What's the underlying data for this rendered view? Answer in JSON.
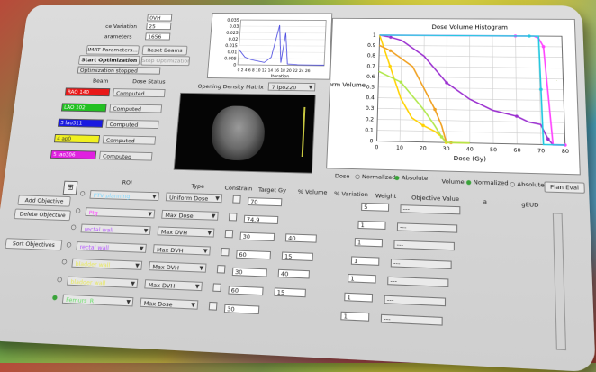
{
  "header": {
    "rows": [
      {
        "label": "ce Variation",
        "value": "25"
      },
      {
        "label": "arameters",
        "value": "1656"
      }
    ],
    "top_value": "0VH"
  },
  "buttons": {
    "imrt_params": "IMRT Parameters...",
    "reset_beams": "Reset Beams",
    "start_opt": "Start Optimization",
    "stop_opt": "Stop Optimization",
    "opt_status": "Optimization stopped",
    "add_objective": "Add Objective",
    "delete_objective": "Delete Objective",
    "sort_objectives": "Sort Objectives",
    "plan_eval": "Plan Eval"
  },
  "beams": {
    "header_beam": "Beam",
    "header_status": "Dose Status",
    "items": [
      {
        "name": "RAO 140",
        "color": "#e81818",
        "status": "Computed"
      },
      {
        "name": "LAO 102",
        "color": "#22c022",
        "status": "Computed"
      },
      {
        "name": "3 lao311",
        "color": "#1a1ae0",
        "status": "Computed"
      },
      {
        "name": "4 ap0",
        "color": "#f0f020",
        "status": "Computed"
      },
      {
        "name": "5 lao306",
        "color": "#e020e0",
        "status": "Computed"
      }
    ]
  },
  "opening_density": {
    "label": "Opening Density Matrix",
    "selected": "7 lpo220"
  },
  "dvh": {
    "title": "Dose Volume Histogram",
    "dose_label": "Dose",
    "dose_normalized": "Normalized",
    "dose_absolute": "Absolute",
    "volume_label": "Volume",
    "volume_normalized": "Normalized",
    "volume_absolute": "Absolute"
  },
  "small_chart": {
    "yticks": [
      "0.035",
      "0.03",
      "0.025",
      "0.02",
      "0.015",
      "0.01",
      "0.005",
      "0"
    ],
    "xticks": "0 2 4 6 8 10 12 14 16 18 20 22 24 26",
    "xlabel": "Iteration"
  },
  "objectives_table": {
    "headers": {
      "roi": "ROI",
      "type": "Type",
      "constrain": "Constrain",
      "target_gy": "Target Gy",
      "pct_volume": "% Volume",
      "pct_variation": "% Variation",
      "weight": "Weight",
      "objective_value": "Objective Value",
      "a": "a",
      "geud": "gEUD"
    },
    "rows": [
      {
        "roi": "PTV planning",
        "roi_color": "#7fd8ff",
        "type": "Uniform Dose",
        "target": "70",
        "volume": "",
        "weight": "5",
        "value": "---"
      },
      {
        "roi": "Ptg",
        "roi_color": "#ff44ff",
        "type": "Max Dose",
        "target": "74.9",
        "volume": "",
        "weight": "1",
        "value": "---"
      },
      {
        "roi": "rectal wall",
        "roi_color": "#b455ff",
        "type": "Max DVH",
        "target": "30",
        "volume": "40",
        "weight": "1",
        "value": "---"
      },
      {
        "roi": "rectal wall",
        "roi_color": "#b455ff",
        "type": "Max DVH",
        "target": "60",
        "volume": "15",
        "weight": "1",
        "value": "---"
      },
      {
        "roi": "bladder wall",
        "roi_color": "#e8e85a",
        "type": "Max DVH",
        "target": "30",
        "volume": "40",
        "weight": "1",
        "value": "---"
      },
      {
        "roi": "bladder wall",
        "roi_color": "#e8e85a",
        "type": "Max DVH",
        "target": "60",
        "volume": "15",
        "weight": "1",
        "value": "---"
      },
      {
        "roi": "Femurs_R",
        "roi_color": "#66e066",
        "type": "Max Dose",
        "target": "30",
        "volume": "",
        "weight": "1",
        "value": "---"
      }
    ]
  },
  "chart_data": {
    "type": "line",
    "title": "Dose Volume Histogram",
    "xlabel": "Dose (Gy)",
    "ylabel": "Norm Volume",
    "xlim": [
      0,
      80
    ],
    "ylim": [
      0,
      1
    ],
    "xticks": [
      0,
      10,
      20,
      30,
      40,
      50,
      60,
      70,
      80
    ],
    "yticks": [
      0,
      0.1,
      0.2,
      0.3,
      0.4,
      0.5,
      0.6,
      0.7,
      0.8,
      0.9,
      1
    ],
    "grid": true,
    "series": [
      {
        "color": "#9b30d0",
        "x": [
          0,
          5,
          10,
          20,
          30,
          40,
          50,
          60,
          65,
          70,
          73,
          75,
          80
        ],
        "y": [
          1,
          0.98,
          0.95,
          0.8,
          0.55,
          0.4,
          0.3,
          0.25,
          0.2,
          0.18,
          0.05,
          0.0,
          0.0
        ]
      },
      {
        "color": "#ffd200",
        "x": [
          0,
          5,
          10,
          15,
          20,
          25,
          28,
          30,
          32,
          40
        ],
        "y": [
          1,
          0.7,
          0.4,
          0.22,
          0.15,
          0.1,
          0.05,
          0.0,
          0.0,
          0.0
        ]
      },
      {
        "color": "#f0a020",
        "x": [
          0,
          5,
          15,
          20,
          25,
          28,
          30,
          32,
          40
        ],
        "y": [
          0.9,
          0.85,
          0.7,
          0.5,
          0.3,
          0.15,
          0.0,
          0.0,
          0.0
        ]
      },
      {
        "color": "#b0e84a",
        "x": [
          0,
          10,
          20,
          25,
          28,
          30,
          40
        ],
        "y": [
          0.65,
          0.55,
          0.3,
          0.15,
          0.05,
          0.0,
          0.0
        ]
      },
      {
        "color": "#ff44ff",
        "x": [
          0,
          60,
          68,
          70,
          72,
          74,
          75,
          80
        ],
        "y": [
          1,
          1,
          1,
          0.98,
          0.9,
          0.3,
          0.0,
          0.0
        ]
      },
      {
        "color": "#22c8e0",
        "x": [
          0,
          66,
          68,
          70,
          70.5,
          71,
          80
        ],
        "y": [
          1,
          1,
          1,
          1,
          0.5,
          0.0,
          0.0
        ]
      }
    ]
  }
}
